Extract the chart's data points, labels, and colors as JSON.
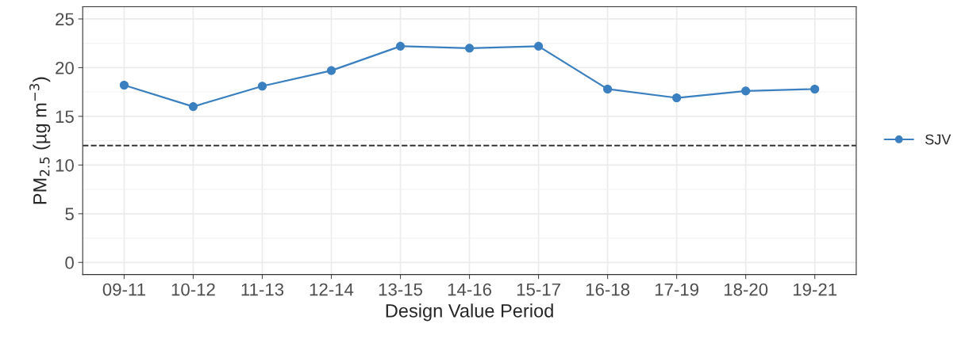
{
  "chart_data": {
    "type": "line",
    "xlabel": "Design Value Period",
    "ylabel": "PM$_{2.5}$ (µg m$^{−3}$)",
    "categories": [
      "09-11",
      "10-12",
      "11-13",
      "12-14",
      "13-15",
      "14-16",
      "15-17",
      "16-18",
      "17-19",
      "18-20",
      "19-21"
    ],
    "series": [
      {
        "name": "SJV",
        "color": "#3a7fbf",
        "values": [
          18.2,
          16.0,
          18.1,
          19.7,
          22.2,
          22.0,
          22.2,
          17.8,
          16.9,
          17.6,
          17.8
        ]
      }
    ],
    "ylim": [
      -1.25,
      26.25
    ],
    "yticks": [
      0,
      5,
      10,
      15,
      20,
      25
    ],
    "ref_lines": [
      {
        "axis": "y",
        "value": 12,
        "color": "#333333",
        "line_style": "dashed"
      }
    ],
    "grid": true,
    "legend": "right",
    "marker": "circle",
    "line_style": "solid"
  }
}
